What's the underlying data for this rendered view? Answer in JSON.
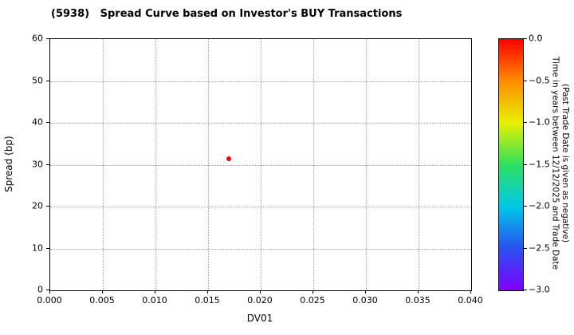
{
  "chart_data": {
    "type": "scatter",
    "title": "(5938)   Spread Curve based on Investor's BUY Transactions",
    "xlabel": "DV01",
    "ylabel": "Spread (bp)",
    "xlim": [
      0.0,
      0.04
    ],
    "ylim": [
      0,
      60
    ],
    "grid": "dotted",
    "xticks": {
      "values": [
        0.0,
        0.005,
        0.01,
        0.015,
        0.02,
        0.025,
        0.03,
        0.035,
        0.04
      ],
      "labels": [
        "0.000",
        "0.005",
        "0.010",
        "0.015",
        "0.020",
        "0.025",
        "0.030",
        "0.035",
        "0.040"
      ]
    },
    "yticks": {
      "values": [
        0,
        10,
        20,
        30,
        40,
        50,
        60
      ],
      "labels": [
        "0",
        "10",
        "20",
        "30",
        "40",
        "50",
        "60"
      ]
    },
    "points": [
      {
        "x": 0.017,
        "y": 31.5,
        "color": "#ff0000",
        "colorbar_value": 0.0
      }
    ],
    "colorbar": {
      "ticks": [
        "0.0",
        "−0.5",
        "−1.0",
        "−1.5",
        "−2.0",
        "−2.5",
        "−3.0"
      ],
      "range_top_to_bottom": [
        0.0,
        -3.0
      ],
      "label_lines": [
        "Time in years between 12/12/2025 and Trade Date",
        "(Past Trade Date is given as negative)"
      ],
      "colors_top_to_bottom": [
        "#ff0000",
        "#ff8c00",
        "#e8f000",
        "#2fe060",
        "#00c8e8",
        "#2a50f0",
        "#8000ff"
      ]
    }
  }
}
